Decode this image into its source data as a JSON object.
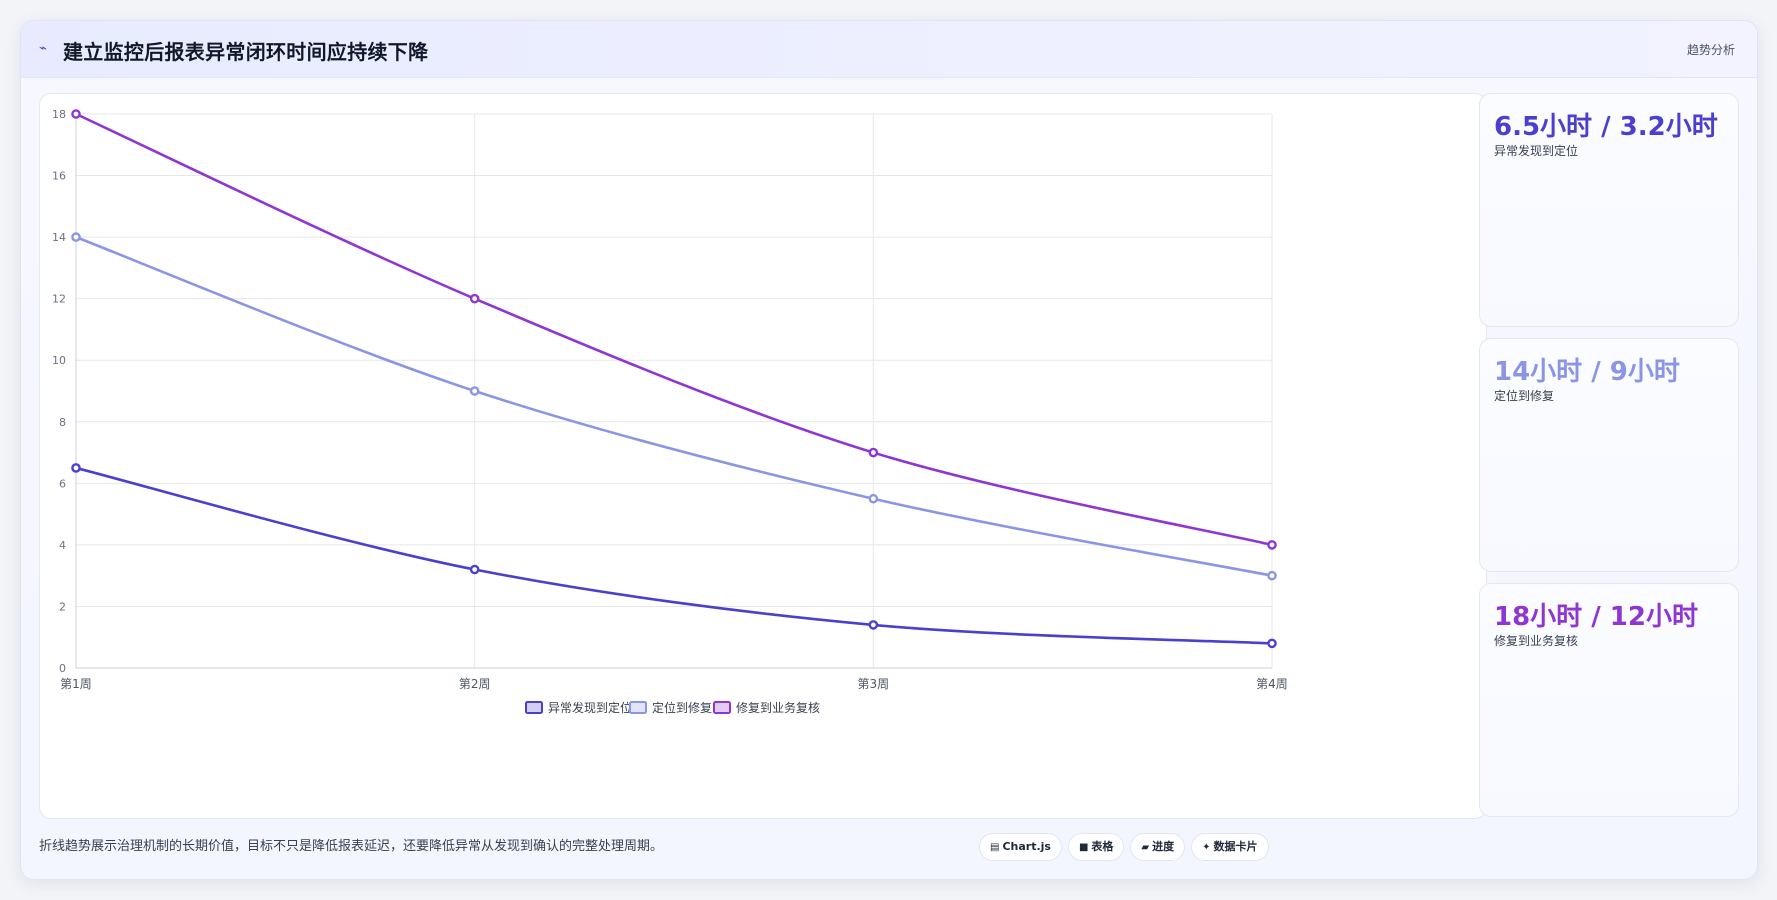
{
  "header": {
    "icon": "pulse-icon",
    "title": "建立监控后报表异常闭环时间应持续下降",
    "tag": "趋势分析"
  },
  "colors": {
    "series1": "#4b3fcf",
    "series2": "#8b95e6",
    "series3": "#8f35d2"
  },
  "chart_data": {
    "type": "line",
    "title": "",
    "xlabel": "",
    "ylabel": "",
    "categories": [
      "第1周",
      "第2周",
      "第3周",
      "第4周"
    ],
    "ylim": [
      0,
      18
    ],
    "yticks": [
      0,
      2,
      4,
      6,
      8,
      10,
      12,
      14,
      16,
      18
    ],
    "grid": true,
    "legend_position": "bottom",
    "series": [
      {
        "name": "异常发现到定位",
        "values": [
          6.5,
          3.2,
          1.4,
          0.8
        ]
      },
      {
        "name": "定位到修复",
        "values": [
          14,
          9,
          5.5,
          3
        ]
      },
      {
        "name": "修复到业务复核",
        "values": [
          18,
          12,
          7,
          4
        ]
      }
    ]
  },
  "kpis": [
    {
      "value": "6.5小时 / 3.2小时",
      "label": "异常发现到定位",
      "color": "#4b3fcf"
    },
    {
      "value": "14小时 / 9小时",
      "label": "定位到修复",
      "color": "#8b95e6"
    },
    {
      "value": "18小时 / 12小时",
      "label": "修复到业务复核",
      "color": "#8f35d2"
    }
  ],
  "footer": {
    "note": "折线趋势展示治理机制的长期价值，目标不只是降低报表延迟，还要降低异常从发现到确认的完整处理周期。",
    "pills": [
      {
        "icon": "chart-icon",
        "glyph": "▤",
        "label": "Chart.js"
      },
      {
        "icon": "table-icon",
        "glyph": "■",
        "label": "表格"
      },
      {
        "icon": "progress-icon",
        "glyph": "▰",
        "label": "进度"
      },
      {
        "icon": "card-icon",
        "glyph": "✦",
        "label": "数据卡片"
      }
    ]
  }
}
